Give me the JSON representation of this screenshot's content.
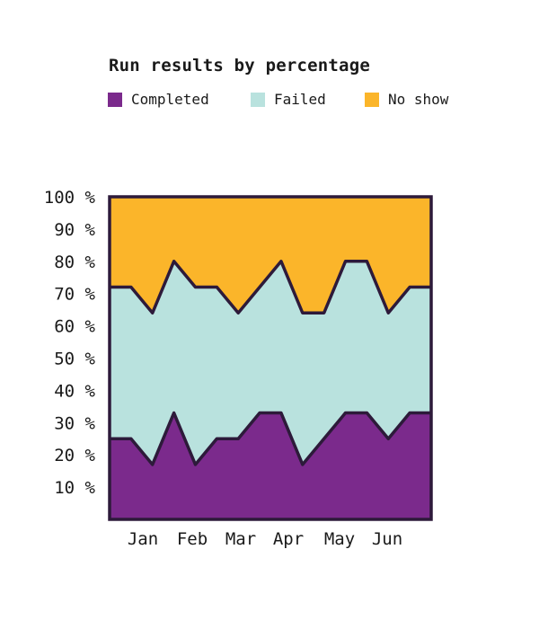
{
  "chart_data": {
    "type": "area",
    "stacked": true,
    "title": "Run results by percentage",
    "x": [
      "Jan",
      "Jan",
      "Jan",
      "Feb",
      "Feb",
      "Mar",
      "Mar",
      "Mar",
      "Apr",
      "Apr",
      "May",
      "May",
      "May",
      "Jun",
      "Jun",
      "Jun"
    ],
    "categories": [
      "Jan",
      "Feb",
      "Mar",
      "Apr",
      "May",
      "Jun"
    ],
    "series": [
      {
        "name": "Completed",
        "color": "#7b2a8c",
        "values": [
          25,
          25,
          17,
          33,
          17,
          25,
          25,
          33,
          33,
          17,
          25,
          33,
          33,
          25,
          33,
          33
        ]
      },
      {
        "name": "Failed",
        "color": "#b9e2de",
        "values": [
          47,
          47,
          47,
          47,
          55,
          47,
          39,
          39,
          47,
          47,
          39,
          47,
          47,
          39,
          39,
          39
        ]
      },
      {
        "name": "No show",
        "color": "#fbb52a",
        "values": [
          28,
          28,
          36,
          20,
          28,
          28,
          36,
          28,
          20,
          36,
          36,
          20,
          20,
          36,
          28,
          28
        ]
      }
    ],
    "yticks": [
      "10 %",
      "20 %",
      "30 %",
      "40 %",
      "50 %",
      "60 %",
      "70 %",
      "80 %",
      "90 %",
      "100 %"
    ],
    "ylim": [
      0,
      100
    ],
    "legend": "top-left",
    "grid": false,
    "outline_color": "#2d1a3a"
  }
}
